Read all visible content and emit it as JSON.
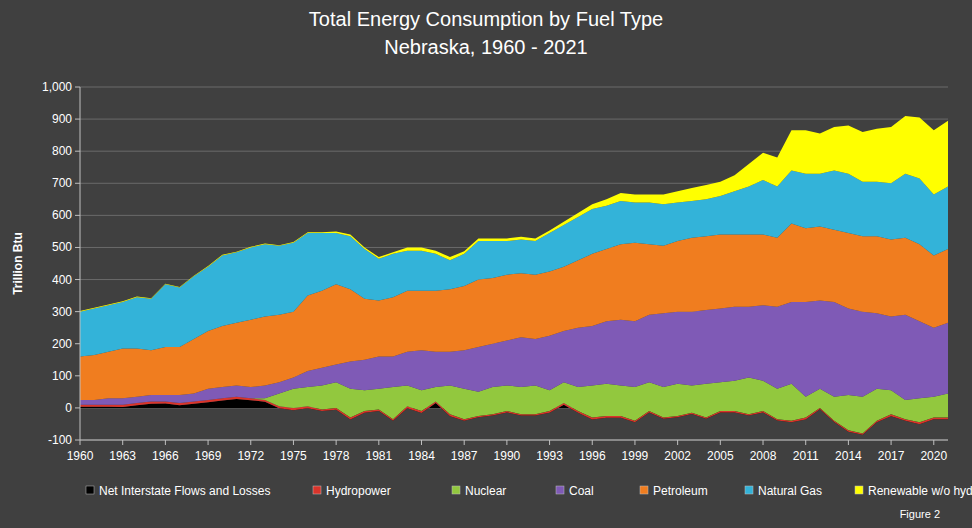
{
  "chart_data": {
    "type": "area",
    "title": "Total Energy Consumption by Fuel Type",
    "subtitle": "Nebraska, 1960 - 2021",
    "ylabel": "Trillion Btu",
    "annotations": [
      "Figure 2"
    ],
    "stacked": true,
    "grid": true,
    "legend": "bottom",
    "x": [
      1960,
      1961,
      1962,
      1963,
      1964,
      1965,
      1966,
      1967,
      1968,
      1969,
      1970,
      1971,
      1972,
      1973,
      1974,
      1975,
      1976,
      1977,
      1978,
      1979,
      1980,
      1981,
      1982,
      1983,
      1984,
      1985,
      1986,
      1987,
      1988,
      1989,
      1990,
      1991,
      1992,
      1993,
      1994,
      1995,
      1996,
      1997,
      1998,
      1999,
      2000,
      2001,
      2002,
      2003,
      2004,
      2005,
      2006,
      2007,
      2008,
      2009,
      2010,
      2011,
      2012,
      2013,
      2014,
      2015,
      2016,
      2017,
      2018,
      2019,
      2020,
      2021
    ],
    "xlim": [
      1960,
      2021
    ],
    "xticks": [
      1960,
      1963,
      1966,
      1969,
      1972,
      1975,
      1978,
      1981,
      1984,
      1987,
      1990,
      1993,
      1996,
      1999,
      2002,
      2005,
      2008,
      2011,
      2014,
      2017,
      2020
    ],
    "ylim": [
      -100,
      1000
    ],
    "yticks": [
      -100,
      0,
      100,
      200,
      300,
      400,
      500,
      600,
      700,
      800,
      900,
      {
        "value": 1000,
        "label": "1,000"
      }
    ],
    "series": [
      {
        "name": "Net Interstate Flows and Losses",
        "color": "#000000",
        "values": [
          4,
          4,
          4,
          3,
          8,
          13,
          14,
          8,
          13,
          18,
          23,
          28,
          24,
          19,
          -1,
          -7,
          -1,
          -10,
          -6,
          -36,
          -15,
          -10,
          -40,
          -1,
          -16,
          15,
          -26,
          -40,
          -29,
          -24,
          -14,
          -24,
          -24,
          -15,
          10,
          -15,
          -36,
          -31,
          -31,
          -45,
          -14,
          -34,
          -29,
          -19,
          -34,
          -14,
          -14,
          -24,
          -14,
          -39,
          -45,
          -36,
          -4,
          -44,
          -74,
          -84,
          -45,
          -26,
          -40,
          -51,
          -35,
          -35
        ]
      },
      {
        "name": "Hydropower",
        "color": "#d9342b",
        "values": [
          6,
          6,
          6,
          7,
          7,
          7,
          6,
          7,
          7,
          7,
          7,
          7,
          6,
          6,
          6,
          7,
          6,
          5,
          6,
          6,
          5,
          5,
          5,
          6,
          6,
          5,
          6,
          5,
          4,
          4,
          4,
          4,
          4,
          5,
          5,
          5,
          6,
          6,
          6,
          5,
          4,
          4,
          4,
          4,
          4,
          4,
          4,
          4,
          4,
          4,
          5,
          6,
          4,
          4,
          4,
          4,
          5,
          6,
          5,
          6,
          5,
          5
        ]
      },
      {
        "name": "Nuclear",
        "color": "#92c83e",
        "values": [
          0,
          0,
          0,
          0,
          0,
          0,
          0,
          0,
          0,
          0,
          0,
          0,
          0,
          5,
          40,
          60,
          60,
          75,
          80,
          90,
          65,
          65,
          100,
          65,
          65,
          45,
          90,
          95,
          75,
          85,
          80,
          85,
          90,
          65,
          65,
          75,
          100,
          100,
          95,
          105,
          90,
          95,
          100,
          85,
          105,
          90,
          95,
          115,
          95,
          95,
          115,
          65,
          60,
          75,
          110,
          115,
          100,
          75,
          60,
          75,
          65,
          75
        ]
      },
      {
        "name": "Coal",
        "color": "#7f5ab6",
        "values": [
          15,
          15,
          20,
          20,
          20,
          20,
          20,
          25,
          25,
          35,
          35,
          35,
          35,
          40,
          35,
          35,
          50,
          55,
          55,
          85,
          95,
          100,
          95,
          105,
          125,
          110,
          105,
          120,
          140,
          135,
          140,
          155,
          145,
          170,
          160,
          185,
          185,
          195,
          205,
          205,
          210,
          230,
          225,
          230,
          230,
          230,
          230,
          220,
          235,
          255,
          255,
          295,
          275,
          295,
          270,
          265,
          235,
          230,
          265,
          240,
          215,
          220
        ]
      },
      {
        "name": "Petroleum",
        "color": "#f07d1f",
        "values": [
          135,
          140,
          145,
          155,
          150,
          140,
          150,
          150,
          170,
          180,
          190,
          195,
          210,
          215,
          210,
          205,
          235,
          240,
          250,
          225,
          190,
          175,
          185,
          190,
          185,
          190,
          195,
          200,
          210,
          205,
          205,
          200,
          200,
          200,
          200,
          210,
          225,
          225,
          235,
          245,
          220,
          210,
          220,
          230,
          230,
          230,
          225,
          225,
          220,
          215,
          245,
          230,
          230,
          225,
          235,
          235,
          240,
          240,
          240,
          240,
          225,
          230
        ]
      },
      {
        "name": "Natural Gas",
        "color": "#33b3d9",
        "values": [
          140,
          145,
          145,
          145,
          160,
          160,
          195,
          185,
          195,
          200,
          220,
          220,
          225,
          225,
          215,
          215,
          195,
          180,
          160,
          165,
          155,
          130,
          135,
          125,
          125,
          115,
          90,
          100,
          120,
          115,
          105,
          105,
          105,
          120,
          130,
          135,
          140,
          135,
          135,
          125,
          130,
          130,
          120,
          115,
          115,
          120,
          135,
          150,
          170,
          160,
          165,
          170,
          165,
          185,
          185,
          170,
          170,
          175,
          200,
          205,
          190,
          195
        ]
      },
      {
        "name": "Renewable w/o hydro",
        "color": "#ffff00",
        "values": [
          2,
          2,
          2,
          2,
          2,
          2,
          2,
          2,
          2,
          2,
          2,
          2,
          2,
          2,
          2,
          2,
          2,
          2,
          5,
          5,
          5,
          5,
          5,
          10,
          10,
          10,
          10,
          8,
          8,
          8,
          8,
          8,
          8,
          8,
          10,
          12,
          15,
          20,
          25,
          25,
          25,
          30,
          35,
          40,
          45,
          45,
          50,
          70,
          85,
          90,
          125,
          135,
          125,
          135,
          150,
          155,
          165,
          175,
          180,
          190,
          200,
          205
        ]
      }
    ]
  }
}
